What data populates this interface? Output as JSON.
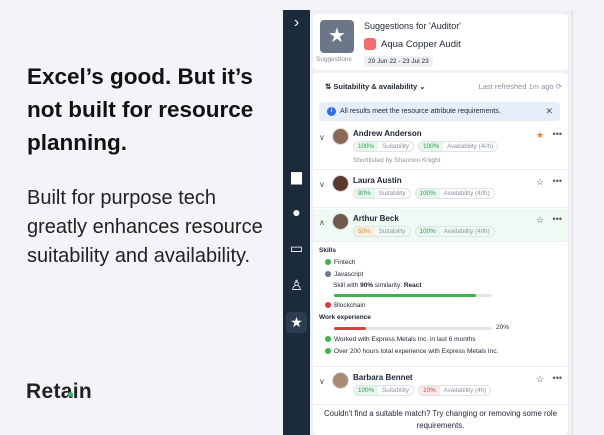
{
  "marketing": {
    "headline": "Excel’s good. But it’s not built for resource planning.",
    "subtext": "Built for purpose tech greatly enhances resource suitability and availability.",
    "logo": "Retain"
  },
  "header": {
    "title": "Suggestions for 'Auditor'",
    "project": "Aqua Copper Audit",
    "dates": "20 Jun 22 - 23 Jul 23",
    "thumb_label": "Suggestions"
  },
  "toolbar": {
    "sort_label": "Suitability & availability",
    "refreshed": "Last refreshed 1m ago"
  },
  "info_banner": "All results meet the resource attribute requirements.",
  "candidates": [
    {
      "name": "Andrew Anderson",
      "suitability": "100%",
      "availability": "100%",
      "suit_label": "Suitability",
      "avail_label": "Availability (40h)",
      "note": "Shortlisted by Shannon Knight",
      "starred": true
    },
    {
      "name": "Laura Austin",
      "suitability": "80%",
      "availability": "100%",
      "suit_label": "Suitability",
      "avail_label": "Availability (40h)",
      "starred": false
    },
    {
      "name": "Arthur Beck",
      "suitability": "50%",
      "availability": "100%",
      "suit_label": "Suitability",
      "avail_label": "Availability (40h)",
      "starred": false
    },
    {
      "name": "Barbara Bennet",
      "suitability": "100%",
      "availability": "10%",
      "suit_label": "Suitability",
      "avail_label": "Availability (4h)",
      "starred": false
    }
  ],
  "details": {
    "skills_title": "Skills",
    "skills": [
      {
        "name": "Fintech",
        "status": "match"
      },
      {
        "name": "Javascript",
        "status": "similar"
      },
      {
        "name": "Blockchain",
        "status": "missing"
      }
    ],
    "similar_prefix": "Skill with ",
    "similar_pct": "90%",
    "similar_mid": " similarity: ",
    "similar_skill": "React",
    "similar_value": 0.9,
    "work_title": "Work experience",
    "work_pct": "20%",
    "work_value": 0.2,
    "work_items": [
      "Worked with Express Metals Inc. in last 6 months",
      "Over 200 hours total experience with Express Metals Inc."
    ]
  },
  "footer": "Couldn't find a suitable match? Try changing or removing some role requirements.",
  "colors": {
    "sidebar": "#1c2b3b",
    "green": "#2a9d59",
    "red": "#d64545",
    "star": "#e08a1e"
  }
}
